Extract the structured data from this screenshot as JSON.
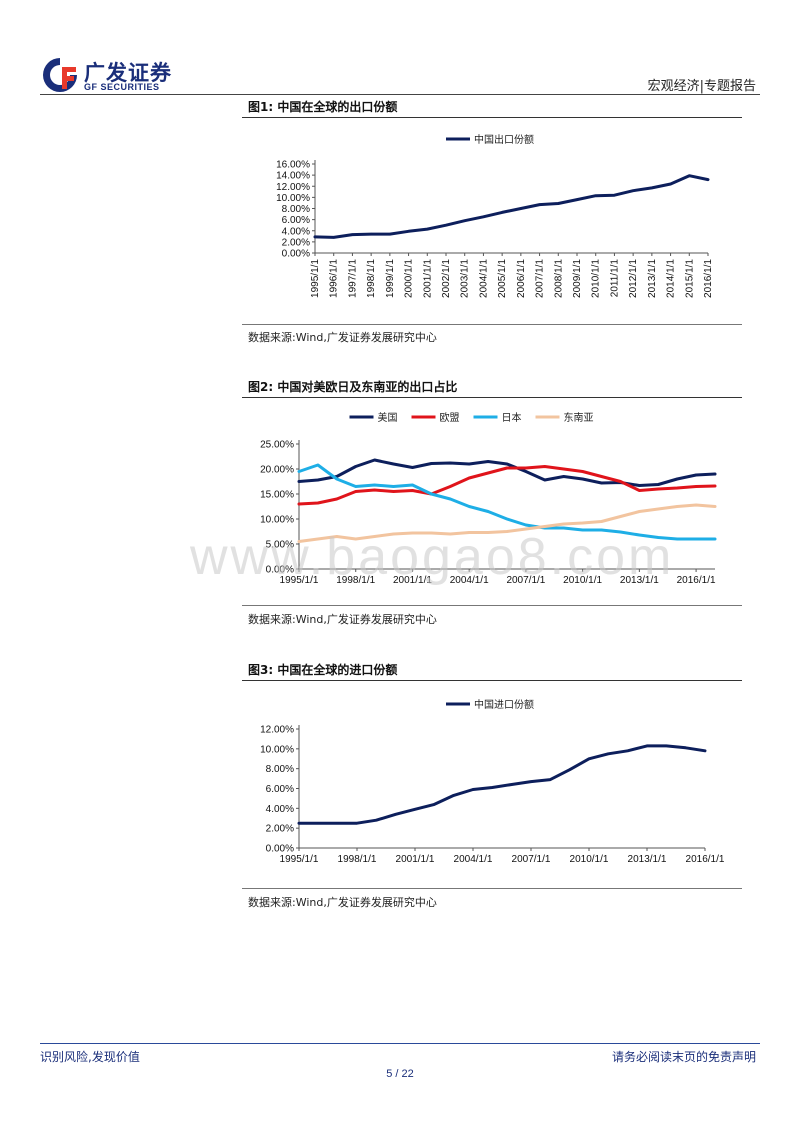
{
  "header": {
    "logo_cn": "广发证券",
    "logo_en": "GF SECURITIES",
    "section": "宏观经济|专题报告"
  },
  "figures": [
    {
      "title": "图1:  中国在全球的出口份额",
      "source": "数据来源:Wind,广发证券发展研究中心"
    },
    {
      "title": "图2:  中国对美欧日及东南亚的出口占比",
      "source": "数据来源:Wind,广发证券发展研究中心"
    },
    {
      "title": "图3:  中国在全球的进口份额",
      "source": "数据来源:Wind,广发证券发展研究中心"
    }
  ],
  "watermark": "www.baogao8.com",
  "footer": {
    "left": "识别风险,发现价值",
    "right": "请务必阅读末页的免责声明",
    "page": "5 / 22"
  },
  "colors": {
    "navy": "#0d1f5c",
    "red": "#e0141b",
    "cyan": "#1eaee6",
    "peach": "#f2c49f",
    "brand": "#1a2e7a"
  },
  "chart_data": [
    {
      "type": "line",
      "title": "图1:  中国在全球的出口份额",
      "x": [
        "1995/1/1",
        "1996/1/1",
        "1997/1/1",
        "1998/1/1",
        "1999/1/1",
        "2000/1/1",
        "2001/1/1",
        "2002/1/1",
        "2003/1/1",
        "2004/1/1",
        "2005/1/1",
        "2006/1/1",
        "2007/1/1",
        "2008/1/1",
        "2009/1/1",
        "2010/1/1",
        "2011/1/1",
        "2012/1/1",
        "2013/1/1",
        "2014/1/1",
        "2015/1/1",
        "2016/1/1"
      ],
      "series": [
        {
          "name": "中国出口份额",
          "color": "#0d1f5c",
          "values": [
            2.9,
            2.8,
            3.3,
            3.4,
            3.4,
            3.9,
            4.3,
            5.0,
            5.8,
            6.5,
            7.3,
            8.0,
            8.7,
            8.9,
            9.6,
            10.3,
            10.4,
            11.2,
            11.7,
            12.4,
            13.9,
            13.2
          ]
        }
      ],
      "ylim": [
        0,
        16
      ],
      "yticks": [
        "0.00%",
        "2.00%",
        "4.00%",
        "6.00%",
        "8.00%",
        "10.00%",
        "12.00%",
        "14.00%",
        "16.00%"
      ],
      "legend": "top-center"
    },
    {
      "type": "line",
      "title": "图2:  中国对美欧日及东南亚的出口占比",
      "x": [
        "1995/1/1",
        "1996/1/1",
        "1997/1/1",
        "1998/1/1",
        "1999/1/1",
        "2000/1/1",
        "2001/1/1",
        "2002/1/1",
        "2003/1/1",
        "2004/1/1",
        "2005/1/1",
        "2006/1/1",
        "2007/1/1",
        "2008/1/1",
        "2009/1/1",
        "2010/1/1",
        "2011/1/1",
        "2012/1/1",
        "2013/1/1",
        "2014/1/1",
        "2015/1/1",
        "2016/1/1",
        "2017/1/1"
      ],
      "xticks": [
        "1995/1/1",
        "1998/1/1",
        "2001/1/1",
        "2004/1/1",
        "2007/1/1",
        "2010/1/1",
        "2013/1/1",
        "2016/1/1"
      ],
      "series": [
        {
          "name": "美国",
          "color": "#0d1f5c",
          "values": [
            17.5,
            17.8,
            18.5,
            20.5,
            21.8,
            21.0,
            20.3,
            21.1,
            21.2,
            21.0,
            21.5,
            21.0,
            19.5,
            17.8,
            18.5,
            18.0,
            17.2,
            17.3,
            16.7,
            16.9,
            18.0,
            18.8,
            19.0
          ]
        },
        {
          "name": "欧盟",
          "color": "#e0141b",
          "values": [
            13.0,
            13.2,
            14.0,
            15.5,
            15.8,
            15.5,
            15.7,
            15.0,
            16.5,
            18.2,
            19.2,
            20.2,
            20.2,
            20.5,
            20.0,
            19.5,
            18.5,
            17.5,
            15.7,
            16.0,
            16.2,
            16.5,
            16.6
          ]
        },
        {
          "name": "日本",
          "color": "#1eaee6",
          "values": [
            19.5,
            20.8,
            18.0,
            16.5,
            16.8,
            16.5,
            16.8,
            15.0,
            14.0,
            12.5,
            11.5,
            10.0,
            8.8,
            8.2,
            8.2,
            7.8,
            7.8,
            7.4,
            6.8,
            6.3,
            6.0,
            6.0,
            6.0
          ]
        },
        {
          "name": "东南亚",
          "color": "#f2c49f",
          "values": [
            5.5,
            6.0,
            6.5,
            6.0,
            6.5,
            7.0,
            7.2,
            7.2,
            7.0,
            7.3,
            7.3,
            7.5,
            8.0,
            8.5,
            9.0,
            9.2,
            9.5,
            10.5,
            11.5,
            12.0,
            12.5,
            12.8,
            12.5
          ]
        }
      ],
      "ylim": [
        0,
        25
      ],
      "yticks": [
        "0.00%",
        "5.00%",
        "10.00%",
        "15.00%",
        "20.00%",
        "25.00%"
      ],
      "legend": "top-center"
    },
    {
      "type": "line",
      "title": "图3:  中国在全球的进口份额",
      "x": [
        "1995/1/1",
        "1996/1/1",
        "1997/1/1",
        "1998/1/1",
        "1999/1/1",
        "2000/1/1",
        "2001/1/1",
        "2002/1/1",
        "2003/1/1",
        "2004/1/1",
        "2005/1/1",
        "2006/1/1",
        "2007/1/1",
        "2008/1/1",
        "2009/1/1",
        "2010/1/1",
        "2011/1/1",
        "2012/1/1",
        "2013/1/1",
        "2014/1/1",
        "2015/1/1",
        "2016/1/1"
      ],
      "xticks": [
        "1995/1/1",
        "1998/1/1",
        "2001/1/1",
        "2004/1/1",
        "2007/1/1",
        "2010/1/1",
        "2013/1/1",
        "2016/1/1"
      ],
      "series": [
        {
          "name": "中国进口份额",
          "color": "#0d1f5c",
          "values": [
            2.5,
            2.5,
            2.5,
            2.5,
            2.8,
            3.4,
            3.9,
            4.4,
            5.3,
            5.9,
            6.1,
            6.4,
            6.7,
            6.9,
            7.9,
            9.0,
            9.5,
            9.8,
            10.3,
            10.3,
            10.1,
            9.8
          ]
        }
      ],
      "ylim": [
        0,
        12
      ],
      "yticks": [
        "0.00%",
        "2.00%",
        "4.00%",
        "6.00%",
        "8.00%",
        "10.00%",
        "12.00%"
      ],
      "legend": "top-center"
    }
  ]
}
